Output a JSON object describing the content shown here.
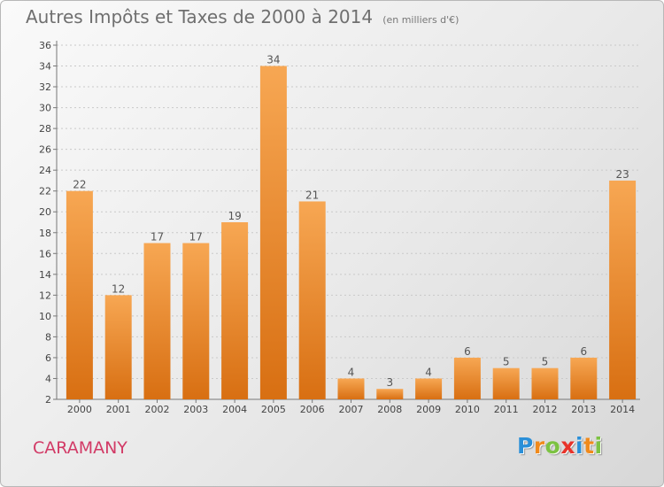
{
  "title": "Autres Impôts et Taxes de 2000 à 2014",
  "unit_note": "(en milliers d'€)",
  "commune": "CARAMANY",
  "logo": {
    "text": "Proxiti",
    "letters": [
      {
        "ch": "P",
        "color": "#2a8fd8"
      },
      {
        "ch": "r",
        "color": "#f08a1c"
      },
      {
        "ch": "o",
        "color": "#7cc242"
      },
      {
        "ch": "x",
        "color": "#e8332a"
      },
      {
        "ch": "i",
        "color": "#2a8fd8"
      },
      {
        "ch": "t",
        "color": "#f08a1c"
      },
      {
        "ch": "i",
        "color": "#7cc242"
      }
    ]
  },
  "colors": {
    "bar_light": "#f7a753",
    "bar_dark": "#d86f12",
    "title": "#6f6f6f",
    "commune": "#d23a66"
  },
  "chart_data": {
    "type": "bar",
    "title": "Autres Impôts et Taxes de 2000 à 2014",
    "categories": [
      "2000",
      "2001",
      "2002",
      "2003",
      "2004",
      "2005",
      "2006",
      "2007",
      "2008",
      "2009",
      "2010",
      "2011",
      "2012",
      "2013",
      "2014"
    ],
    "values": [
      22,
      12,
      17,
      17,
      19,
      34,
      21,
      4,
      3,
      4,
      6,
      5,
      5,
      6,
      23
    ],
    "ylim": [
      2,
      36
    ],
    "yticks": [
      2,
      4,
      6,
      8,
      10,
      12,
      14,
      16,
      18,
      20,
      22,
      24,
      26,
      28,
      30,
      32,
      34,
      36
    ],
    "grid": true,
    "legend": "none",
    "data_labels": true
  }
}
